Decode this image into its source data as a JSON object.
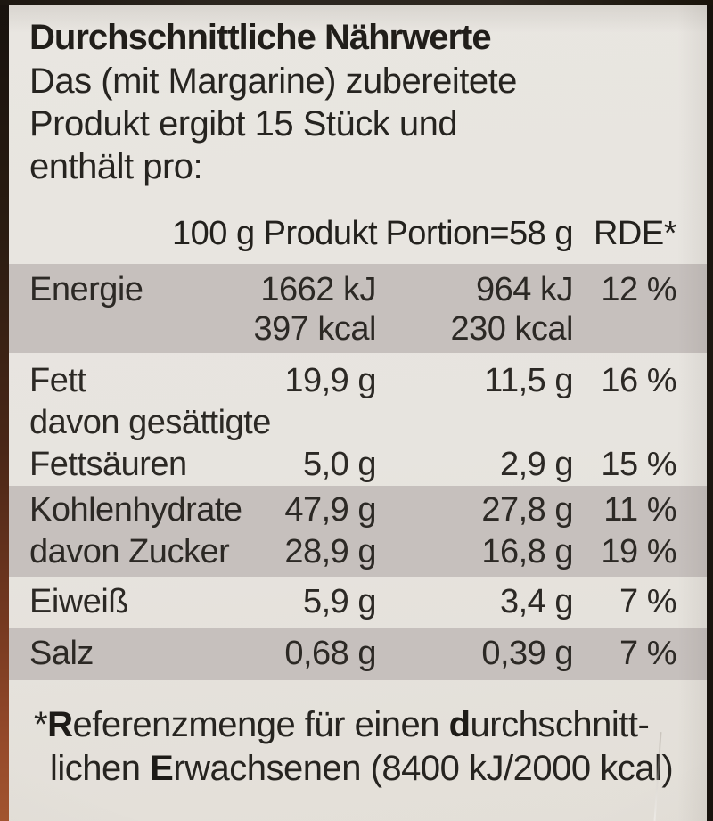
{
  "label": {
    "title": "Durchschnittliche Nährwerte",
    "intro_lines": [
      "Das (mit Margarine) zubereitete",
      "Produkt ergibt 15 Stück und",
      "enthält pro:"
    ],
    "columns": {
      "product_100g": "100 g Produkt",
      "portion": "Portion=58 g",
      "rde": "RDE*"
    },
    "rows": [
      {
        "band": "gray",
        "lines": [
          [
            "Energie",
            "1662 kJ",
            "964 kJ",
            "12 %"
          ],
          [
            "",
            "397 kcal",
            "230 kcal",
            ""
          ]
        ]
      },
      {
        "band": "white",
        "lines": [
          [
            "Fett",
            "19,9 g",
            "11,5 g",
            "16 %"
          ],
          [
            "davon gesättigte",
            "",
            "",
            ""
          ],
          [
            "Fettsäuren",
            "5,0 g",
            "2,9 g",
            "15 %"
          ]
        ]
      },
      {
        "band": "gray",
        "lines": [
          [
            "Kohlenhydrate",
            "47,9 g",
            "27,8 g",
            "11 %"
          ],
          [
            "davon Zucker",
            "28,9 g",
            "16,8 g",
            "19 %"
          ]
        ]
      },
      {
        "band": "white",
        "lines": [
          [
            "Eiweiß",
            "5,9 g",
            "3,4 g",
            "7 %"
          ]
        ]
      },
      {
        "band": "gray",
        "lines": [
          [
            "Salz",
            "0,68 g",
            "0,39 g",
            "7 %"
          ]
        ]
      }
    ],
    "footnote_lines": [
      [
        {
          "text": "*"
        },
        {
          "text": "R",
          "bold": true
        },
        {
          "text": "eferenzmenge für einen "
        },
        {
          "text": "d",
          "bold": true
        },
        {
          "text": "urchschnitt-"
        }
      ],
      [
        {
          "text": "lichen "
        },
        {
          "text": "E",
          "bold": true
        },
        {
          "text": "rwachsenen (8400 kJ/2000 kcal)"
        }
      ]
    ]
  },
  "colors": {
    "label_background": "#e7e4df",
    "band_gray": "#c6c0bd",
    "text": "#2c2925",
    "edge_left_bottom": "#a3552f",
    "edge_dark": "#1d1812"
  }
}
